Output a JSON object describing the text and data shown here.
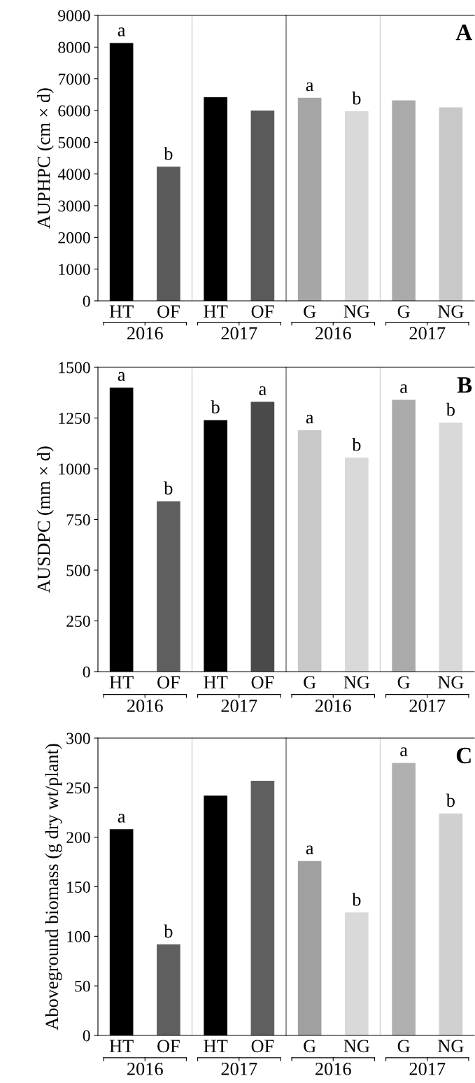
{
  "chart_data": [
    {
      "type": "bar",
      "ylabel": "AUPHPC (cm × d)",
      "categories": [
        "HT",
        "OF",
        "HT",
        "OF"
      ],
      "values": [
        8130,
        4230,
        6420,
        6000
      ],
      "colors": [
        "#000000",
        "#5a5a5a",
        "#000000",
        "#5a5a5a"
      ],
      "value_labels": [
        "a",
        "b",
        null,
        null
      ],
      "ylim": [
        0,
        9000
      ],
      "yticks": [
        0,
        1000,
        2000,
        3000,
        4000,
        5000,
        6000,
        7000,
        8000,
        9000
      ],
      "annotations": [
        "2016",
        "2017"
      ]
    },
    {
      "type": "bar",
      "title": "A",
      "categories": [
        "G",
        "NG",
        "G",
        "NG"
      ],
      "values": [
        6400,
        5980,
        6320,
        6100
      ],
      "colors": [
        "#a6a6a6",
        "#d9d9d9",
        "#aaaaaa",
        "#c8c8c8"
      ],
      "value_labels": [
        "a",
        "b",
        null,
        null
      ],
      "ylim": [
        0,
        9000
      ],
      "yticks": [
        0,
        1000,
        2000,
        3000,
        4000,
        5000,
        6000,
        7000,
        8000,
        9000
      ],
      "tick_labels": "x",
      "annotations": [
        "2016",
        "2017"
      ]
    },
    {
      "type": "bar",
      "ylabel": "AUSDPC (mm × d)",
      "categories": [
        "HT",
        "OF",
        "HT",
        "OF"
      ],
      "values": [
        1400,
        840,
        1240,
        1330
      ],
      "colors": [
        "#000000",
        "#5f5f5f",
        "#000000",
        "#4a4a4a"
      ],
      "value_labels": [
        "a",
        "b",
        "b",
        "a"
      ],
      "ylim": [
        0,
        1500
      ],
      "yticks": [
        0,
        250,
        500,
        750,
        1000,
        1250,
        1500
      ],
      "annotations": [
        "2016",
        "2017"
      ]
    },
    {
      "type": "bar",
      "title": "B",
      "categories": [
        "G",
        "NG",
        "G",
        "NG"
      ],
      "values": [
        1190,
        1055,
        1340,
        1228
      ],
      "colors": [
        "#c8c8c8",
        "#d9d9d9",
        "#aaaaaa",
        "#d9d9d9"
      ],
      "value_labels": [
        "a",
        "b",
        "a",
        "b"
      ],
      "ylim": [
        0,
        1500
      ],
      "yticks": [
        0,
        250,
        500,
        750,
        1000,
        1250,
        1500
      ],
      "tick_labels": "x",
      "annotations": [
        "2016",
        "2017"
      ]
    },
    {
      "type": "bar",
      "ylabel": "Aboveground biomass (g dry wt/plant)",
      "categories": [
        "HT",
        "OF",
        "HT",
        "OF"
      ],
      "values": [
        208,
        92,
        242,
        257
      ],
      "colors": [
        "#000000",
        "#5f5f5f",
        "#000000",
        "#5f5f5f"
      ],
      "value_labels": [
        "a",
        "b",
        null,
        null
      ],
      "ylim": [
        0,
        300
      ],
      "yticks": [
        0,
        50,
        100,
        150,
        200,
        250,
        300
      ],
      "annotations": [
        "2016",
        "2017"
      ]
    },
    {
      "type": "bar",
      "title": "C",
      "categories": [
        "G",
        "NG",
        "G",
        "NG"
      ],
      "values": [
        176,
        124,
        275,
        224
      ],
      "colors": [
        "#a0a0a0",
        "#d9d9d9",
        "#b0b0b0",
        "#d0d0d0"
      ],
      "value_labels": [
        "a",
        "b",
        "a",
        "b"
      ],
      "ylim": [
        0,
        300
      ],
      "yticks": [
        0,
        50,
        100,
        150,
        200,
        250,
        300
      ],
      "tick_labels": "x",
      "annotations": [
        "2016",
        "2017"
      ]
    }
  ]
}
